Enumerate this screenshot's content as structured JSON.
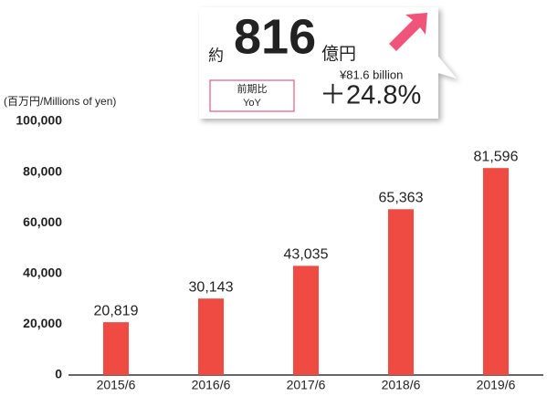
{
  "chart_data": {
    "type": "bar",
    "axis_label": "(百万円/Millions of yen)",
    "categories": [
      "2015/6",
      "2016/6",
      "2017/6",
      "2018/6",
      "2019/6"
    ],
    "values": [
      20819,
      30143,
      43035,
      65363,
      81596
    ],
    "value_labels": [
      "20,819",
      "30,143",
      "43,035",
      "65,363",
      "81,596"
    ],
    "color": "#ef4b43",
    "ylim": [
      0,
      100000
    ],
    "yticks": [
      0,
      {
        "value": 20000,
        "label": "20,000"
      },
      {
        "value": 40000,
        "label": "40,000"
      },
      {
        "value": 60000,
        "label": "60,000"
      },
      {
        "value": 80000,
        "label": "80,000"
      },
      {
        "value": 100000,
        "label": "100,000"
      }
    ],
    "grid": false,
    "callout": {
      "prefix": "約",
      "number": "816",
      "unit": "億円",
      "english": "¥81.6 billion",
      "yoy_ja": "前期比",
      "yoy_en": "YoY",
      "growth": "＋24.8%"
    }
  }
}
